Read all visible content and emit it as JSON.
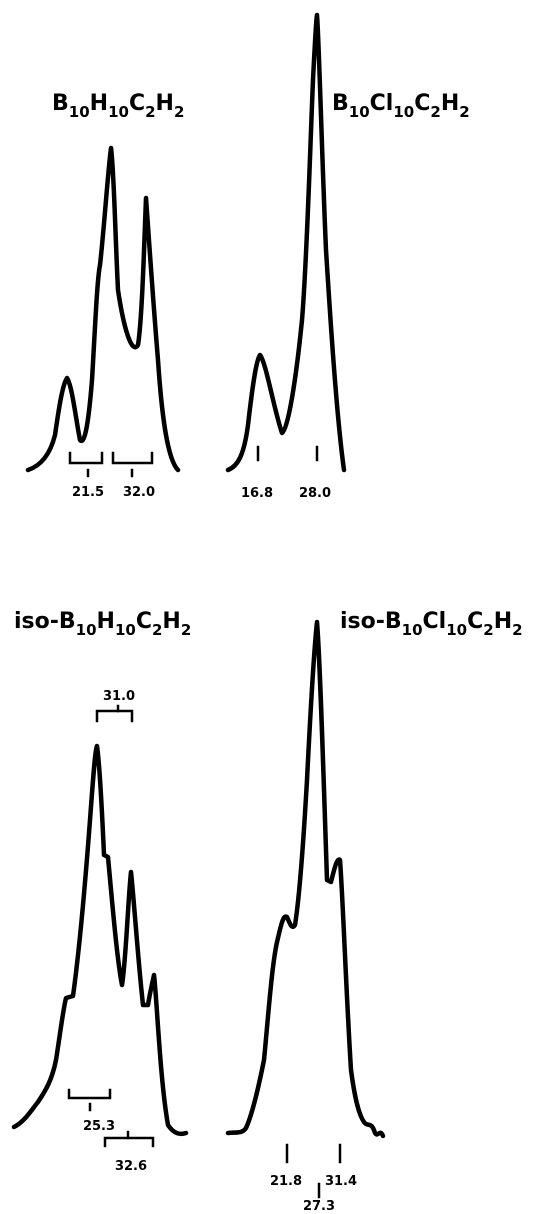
{
  "chart_data": [
    {
      "type": "line",
      "title": "B10H10C2H2",
      "title_parts": [
        "B",
        "10",
        "H",
        "10",
        "C",
        "2",
        "H",
        "2"
      ],
      "peak_labels": [
        "21.5",
        "32.0"
      ],
      "peak_markers": [
        "single",
        "single"
      ],
      "pair_brackets": [
        {
          "label": "21.5",
          "placement": "below"
        },
        {
          "label": "32.0",
          "placement": "below"
        }
      ],
      "grid": false,
      "legend": "none"
    },
    {
      "type": "line",
      "title": "B10Cl10C2H2",
      "title_parts": [
        "B",
        "10",
        "Cl",
        "10",
        "C",
        "2",
        "H",
        "2"
      ],
      "peak_labels": [
        "16.8",
        "28.0"
      ],
      "peak_markers": [
        "single",
        "single"
      ],
      "grid": false,
      "legend": "none"
    },
    {
      "type": "line",
      "title": "iso-B10H10C2H2",
      "title_parts": [
        "iso-B",
        "10",
        "H",
        "10",
        "C",
        "2",
        "H",
        "2"
      ],
      "peak_labels": [
        "31.0",
        "25.3",
        "32.6"
      ],
      "pair_brackets": [
        {
          "label": "31.0",
          "placement": "above"
        },
        {
          "label": "25.3",
          "placement": "below"
        },
        {
          "label": "32.6",
          "placement": "below"
        }
      ],
      "grid": false,
      "legend": "none"
    },
    {
      "type": "line",
      "title": "iso-B10Cl10C2H2",
      "title_parts": [
        "iso-B",
        "10",
        "Cl",
        "10",
        "C",
        "2",
        "H",
        "2"
      ],
      "peak_labels": [
        "21.8",
        "31.4",
        "27.3"
      ],
      "peak_markers": [
        "single",
        "single",
        "single"
      ],
      "grid": false,
      "legend": "none"
    }
  ]
}
